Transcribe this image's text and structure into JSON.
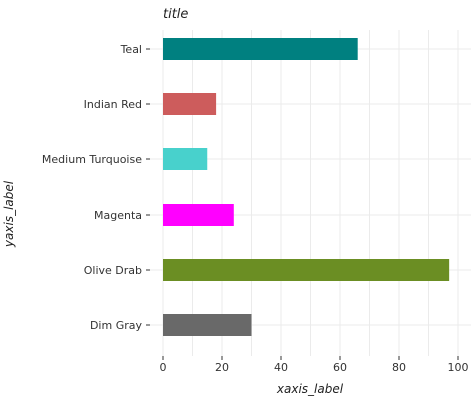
{
  "chart_data": {
    "type": "bar",
    "orientation": "horizontal",
    "title": "title",
    "xlabel": "xaxis_label",
    "ylabel": "yaxis_label",
    "categories": [
      "Dim Gray",
      "Olive Drab",
      "Magenta",
      "Medium Turquoise",
      "Indian Red",
      "Teal"
    ],
    "values": [
      30,
      97,
      24,
      15,
      18,
      66
    ],
    "colors": [
      "#696969",
      "#6b8e23",
      "#ff00ff",
      "#48d1cc",
      "#cd5c5c",
      "#008080"
    ],
    "xlim": [
      0,
      100
    ],
    "xticks": [
      0,
      20,
      40,
      60,
      80,
      100
    ],
    "xtick_labels": [
      "0",
      "20",
      "40",
      "60",
      "80",
      "100"
    ],
    "grid": true,
    "legend": "none"
  }
}
